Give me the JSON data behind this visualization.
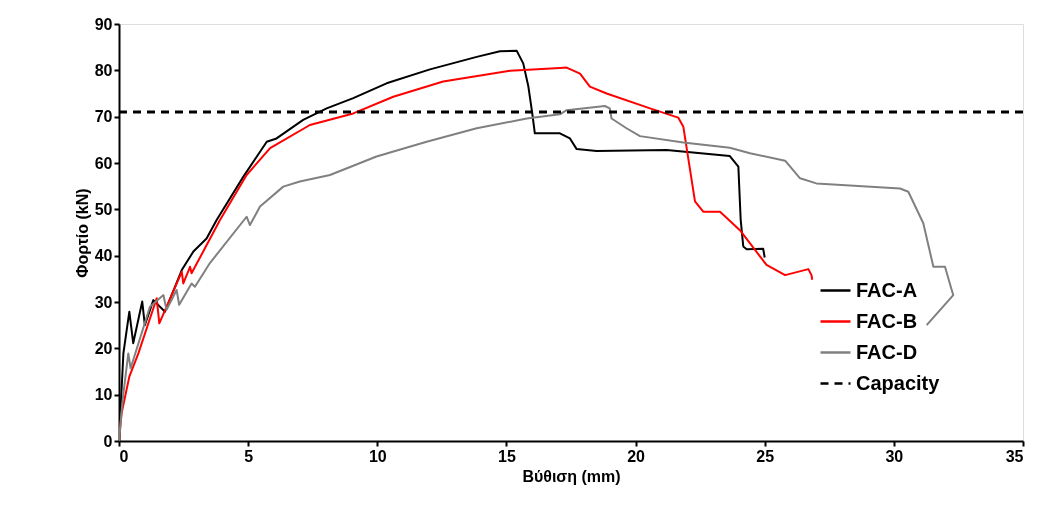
{
  "chart_data": {
    "type": "line",
    "xlabel": "Βύθιση (mm)",
    "ylabel": "Φορτίο (kN)",
    "xlim": [
      0,
      35
    ],
    "xticks": [
      0,
      5,
      10,
      15,
      20,
      25,
      30,
      35
    ],
    "ylim": [
      0,
      90
    ],
    "yticks": [
      0,
      10,
      20,
      30,
      40,
      50,
      60,
      70,
      80,
      90
    ],
    "grid": false,
    "legend": "bottom right",
    "line_style": "solid",
    "series": [
      {
        "name": "FAC-A",
        "color": "#000000",
        "x": [
          0,
          0.17,
          0.4,
          0.55,
          0.9,
          1.0,
          1.33,
          1.78,
          2.43,
          2.88,
          3.39,
          3.78,
          4.81,
          5.72,
          6.1,
          7.13,
          8.04,
          9.07,
          10.36,
          12.04,
          13.85,
          14.75,
          15.4,
          15.65,
          15.85,
          16.0,
          16.1,
          17.07,
          17.46,
          17.72,
          18.49,
          21.2,
          23.65,
          23.98,
          24.07,
          24.17,
          24.3,
          24.94,
          25.0
        ],
        "values": [
          0,
          18.9,
          27.9,
          21.1,
          30.1,
          25,
          30.4,
          27.9,
          36.9,
          40.9,
          43.7,
          47.7,
          57.0,
          64.6,
          65.3,
          69.3,
          71.8,
          74.0,
          77.2,
          80.2,
          82.9,
          84.1,
          84.2,
          81.5,
          76.5,
          70.7,
          66.4,
          66.4,
          65.3,
          63.0,
          62.6,
          62.8,
          61.5,
          59.2,
          47.7,
          42.0,
          41.4,
          41.5,
          39.6
        ]
      },
      {
        "name": "FAC-B",
        "color": "#ff0000",
        "x": [
          0,
          0.1,
          0.4,
          0.75,
          1.46,
          1.56,
          2.43,
          2.49,
          2.75,
          2.81,
          3.91,
          4.94,
          5.85,
          7.39,
          9.07,
          10.62,
          12.55,
          15.14,
          17.07,
          17.33,
          17.85,
          18.23,
          18.88,
          20.56,
          21.65,
          21.85,
          22.3,
          22.62,
          23.27,
          24.04,
          25.07,
          25.79,
          26.69,
          26.81,
          26.84
        ],
        "values": [
          0,
          6.0,
          13.9,
          18.9,
          30.8,
          25.4,
          36.5,
          34.0,
          37.6,
          36.2,
          47.7,
          57.4,
          63.2,
          68.2,
          70.7,
          74.3,
          77.6,
          79.9,
          80.5,
          80.6,
          79.3,
          76.5,
          75.0,
          71.8,
          69.8,
          67.8,
          51.7,
          49.5,
          49.5,
          45.5,
          38.0,
          35.8,
          37.1,
          35.8,
          34.8
        ]
      },
      {
        "name": "FAC-D",
        "color": "#808080",
        "x": [
          0,
          0.14,
          0.36,
          0.45,
          1.2,
          1.72,
          1.84,
          2.23,
          2.33,
          2.81,
          2.94,
          3.52,
          4.94,
          5.07,
          5.46,
          6.36,
          7.0,
          8.17,
          9.97,
          11.91,
          13.85,
          15.79,
          17.07,
          17.33,
          18.81,
          19.0,
          19.07,
          19.65,
          20.17,
          21.85,
          23.65,
          24.43,
          25.79,
          26.37,
          27.0,
          30.24,
          30.56,
          31.14,
          31.53,
          31.98,
          32.24,
          32.3,
          31.27
        ],
        "values": [
          0,
          8.8,
          18.9,
          15.7,
          29.0,
          31.5,
          28.3,
          32.6,
          29.4,
          34.0,
          33.3,
          38.4,
          48.4,
          46.6,
          50.6,
          54.9,
          56.0,
          57.4,
          61.4,
          64.6,
          67.5,
          69.6,
          70.5,
          71.4,
          72.3,
          71.8,
          69.6,
          67.5,
          65.8,
          64.4,
          63.3,
          62.1,
          60.5,
          56.7,
          55.6,
          54.5,
          53.8,
          47.0,
          37.6,
          37.6,
          32.6,
          31.5,
          25.0
        ]
      }
    ],
    "ref_lines": [
      {
        "axis": "y",
        "value": 71,
        "label": "Capacity",
        "color": "#000000",
        "line_style": "dashed"
      }
    ]
  }
}
